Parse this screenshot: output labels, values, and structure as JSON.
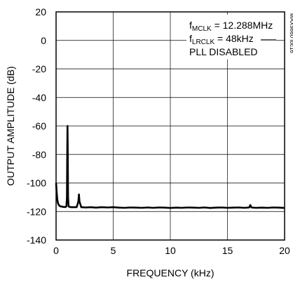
{
  "chart_data": {
    "type": "line",
    "xlabel": "FREQUENCY (kHz)",
    "ylabel": "OUTPUT AMPLITUDE (dB)",
    "xlim": [
      0,
      20
    ],
    "ylim": [
      -140,
      20
    ],
    "x_ticks": [
      0,
      5,
      10,
      15,
      20
    ],
    "x_tick_labels": [
      "0",
      "5",
      "10",
      "15",
      "20"
    ],
    "y_ticks": [
      20,
      0,
      -20,
      -40,
      -60,
      -80,
      -100,
      -120,
      -140
    ],
    "y_tick_labels": [
      "20",
      "0",
      "-20",
      "-40",
      "-60",
      "-80",
      "-100",
      "-120",
      "-140"
    ],
    "grid": true,
    "annotations": [
      {
        "main": "f",
        "sub": "MCLK",
        "rest": " = 12.288MHz"
      },
      {
        "main": "f",
        "sub": "LRCLK",
        "rest": " = 48kHz"
      },
      {
        "main": "PLL DISABLED",
        "sub": "",
        "rest": ""
      }
    ],
    "side_id": "MAX9860 toc16",
    "series": [
      {
        "x": [
          0.0,
          0.05,
          0.1,
          0.15,
          0.2,
          0.3,
          0.4,
          0.5,
          0.6,
          0.7,
          0.8,
          0.9,
          0.95,
          0.98,
          1.0,
          1.02,
          1.05,
          1.1,
          1.3,
          1.6,
          1.8,
          1.95,
          2.0,
          2.05,
          2.2,
          2.6,
          3.0,
          3.5,
          4.0,
          4.5,
          5.0,
          5.5,
          6.0,
          6.5,
          7.0,
          7.5,
          8.0,
          8.5,
          9.0,
          9.5,
          10.0,
          10.5,
          11.0,
          11.5,
          12.0,
          12.5,
          13.0,
          13.5,
          14.0,
          14.5,
          15.0,
          15.5,
          16.0,
          16.5,
          16.9,
          17.0,
          17.1,
          17.5,
          18.0,
          18.5,
          19.0,
          19.5,
          20.0
        ],
        "y": [
          -100,
          -106,
          -111,
          -113.5,
          -115,
          -116,
          -116.5,
          -116.5,
          -116.8,
          -116.8,
          -116.9,
          -116.5,
          -110,
          -75,
          -60,
          -75,
          -110,
          -116.5,
          -117,
          -117,
          -117,
          -113,
          -108,
          -113,
          -117,
          -117.2,
          -117,
          -117.3,
          -117,
          -117.2,
          -117,
          -117.3,
          -117.4,
          -117.2,
          -117.3,
          -117.4,
          -117.2,
          -117.4,
          -117.2,
          -117.3,
          -117.5,
          -117.3,
          -117.4,
          -117.2,
          -117.3,
          -117.4,
          -117.2,
          -117.5,
          -117.3,
          -117.2,
          -117.4,
          -117.3,
          -117.2,
          -117.4,
          -117.2,
          -115.5,
          -117.2,
          -117.4,
          -117.3,
          -117.4,
          -117.2,
          -117.3,
          -117.5
        ]
      }
    ]
  }
}
